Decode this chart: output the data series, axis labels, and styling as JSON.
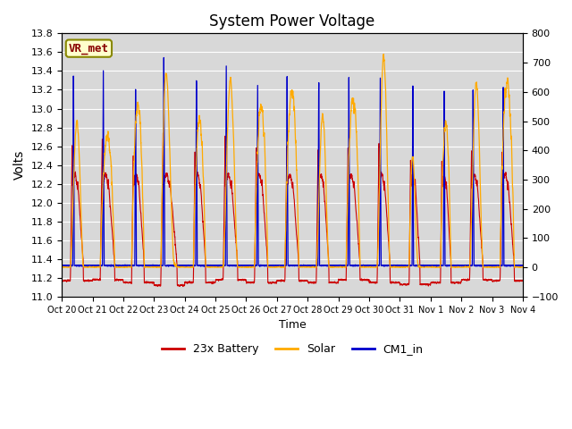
{
  "title": "System Power Voltage",
  "ylabel_left": "Volts",
  "xlabel": "Time",
  "ylim_left": [
    11.0,
    13.8
  ],
  "ylim_right": [
    -100,
    800
  ],
  "yticks_left": [
    11.0,
    11.2,
    11.4,
    11.6,
    11.8,
    12.0,
    12.2,
    12.4,
    12.6,
    12.8,
    13.0,
    13.2,
    13.4,
    13.6,
    13.8
  ],
  "yticks_right": [
    -100,
    0,
    100,
    200,
    300,
    400,
    500,
    600,
    700,
    800
  ],
  "xtick_labels": [
    "Oct 20",
    "Oct 21",
    "Oct 22",
    "Oct 23",
    "Oct 24",
    "Oct 25",
    "Oct 26",
    "Oct 27",
    "Oct 28",
    "Oct 29",
    "Oct 30",
    "Oct 31",
    "Nov 1",
    "Nov 2",
    "Nov 3",
    "Nov 4"
  ],
  "legend_labels": [
    "23x Battery",
    "Solar",
    "CM1_in"
  ],
  "line_colors": [
    "#cc0000",
    "#ffaa00",
    "#0000cc"
  ],
  "bg_color": "#e8e8e8",
  "plot_bg_color": "#d8d8d8",
  "vr_met_label": "VR_met",
  "vr_met_color": "#880000",
  "vr_met_bg": "#ffffcc",
  "vr_met_edge": "#888800",
  "grid_color": "#ffffff",
  "n_days": 15,
  "pts_per_day": 288,
  "left_axis_color": "#333333",
  "right_axis_color": "#333333"
}
